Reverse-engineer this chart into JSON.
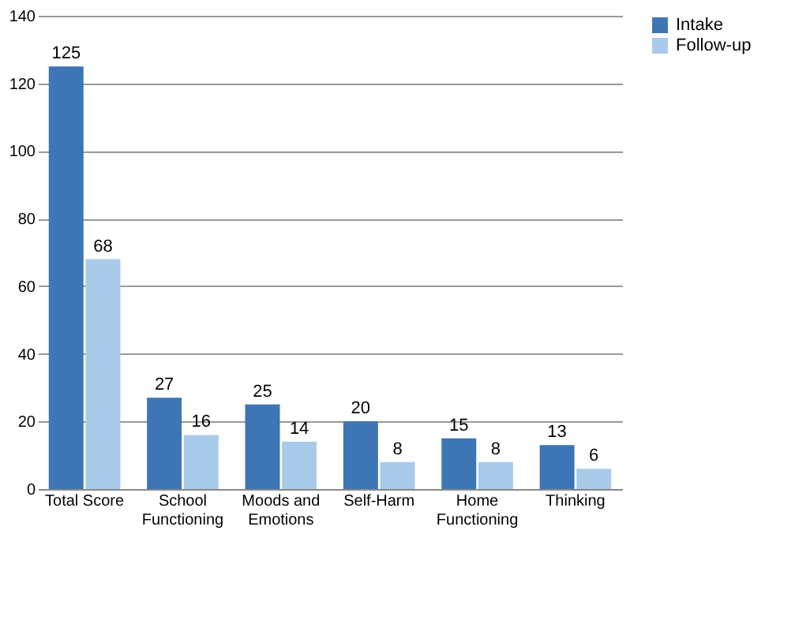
{
  "chart_data": {
    "type": "bar",
    "categories": [
      "Total Score",
      "School Functioning",
      "Moods and Emotions",
      "Self-Harm",
      "Home Functioning",
      "Thinking"
    ],
    "series": [
      {
        "name": "Intake",
        "color": "#3d75b5",
        "values": [
          125,
          27,
          25,
          20,
          15,
          13
        ]
      },
      {
        "name": "Follow-up",
        "color": "#a9cbea",
        "values": [
          68,
          16,
          14,
          8,
          8,
          6
        ]
      }
    ],
    "ylim": [
      0,
      140
    ],
    "yticks": [
      0,
      20,
      40,
      60,
      80,
      100,
      120,
      140
    ],
    "grid": "y",
    "legend": "right",
    "data_labels": true
  }
}
